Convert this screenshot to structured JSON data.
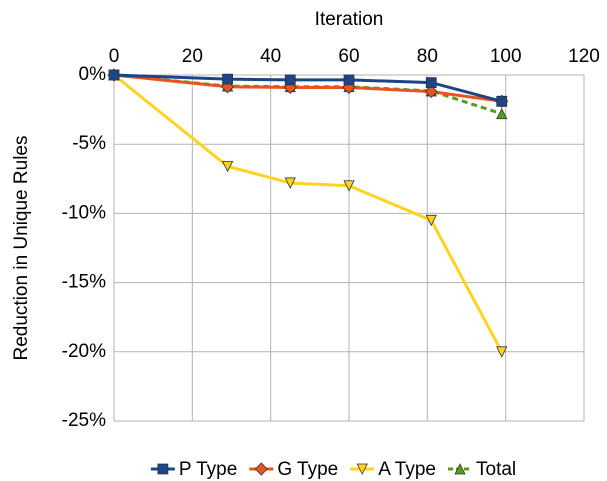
{
  "chart_data": {
    "type": "line",
    "x_label": "Iteration",
    "y_label": "Reduction in Unique Rules",
    "x": [
      0,
      29,
      45,
      60,
      81,
      99
    ],
    "series": [
      {
        "name": "P Type",
        "color": "#1c4587",
        "marker": "square",
        "values": [
          0,
          -0.3,
          -0.35,
          -0.35,
          -0.55,
          -1.9
        ]
      },
      {
        "name": "G Type",
        "color": "#e8531f",
        "marker": "diamond",
        "values": [
          0,
          -0.85,
          -0.9,
          -0.9,
          -1.2,
          -1.9
        ]
      },
      {
        "name": "A Type",
        "color": "#ffd320",
        "marker": "triangle-down",
        "values": [
          0,
          -6.6,
          -7.8,
          -8.0,
          -10.5,
          -20.0
        ]
      },
      {
        "name": "Total",
        "color": "#579d1c",
        "marker": "triangle-up",
        "dashed": true,
        "values": [
          0,
          -0.8,
          -0.85,
          -0.85,
          -1.15,
          -2.8
        ]
      }
    ],
    "xlim": [
      0,
      120
    ],
    "xticks": [
      0,
      20,
      40,
      60,
      80,
      100,
      120
    ],
    "ylim": [
      -25,
      0
    ],
    "yticks": [
      {
        "value": 0,
        "label": "0%"
      },
      {
        "value": -5,
        "label": "-5%"
      },
      {
        "value": -10,
        "label": "-10%"
      },
      {
        "value": -15,
        "label": "-15%"
      },
      {
        "value": -20,
        "label": "-20%"
      },
      {
        "value": -25,
        "label": "-25%"
      }
    ],
    "grid": true,
    "legend": "bottom"
  }
}
